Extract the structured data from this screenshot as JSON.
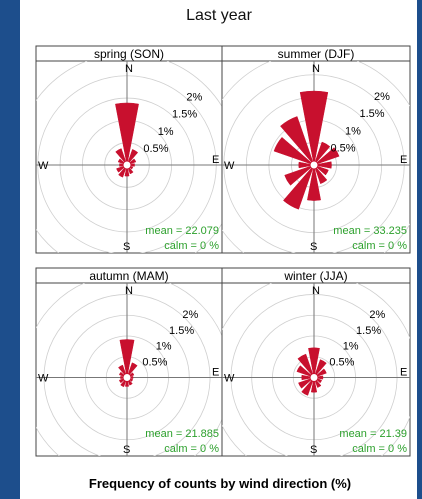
{
  "chart_data": {
    "type": "windrose",
    "title": "Last year",
    "xlabel": "Frequency of counts by wind direction (%)",
    "radial_ticks": [
      "0.5%",
      "1%",
      "1.5%",
      "2%"
    ],
    "radial_max": 2.5,
    "colors": {
      "petal": "#c8102e",
      "mean_text": "#2ca02c",
      "grid": "#cfcfcf",
      "axis": "#000000"
    },
    "directions": [
      0,
      30,
      60,
      90,
      120,
      150,
      180,
      210,
      240,
      270,
      300,
      330
    ],
    "compass": {
      "n": "N",
      "e": "E",
      "s": "S",
      "w": "W"
    },
    "panels": [
      {
        "name": "spring (SON)",
        "mean": "mean = 22.079",
        "calm": "calm = 0 %",
        "values": [
          1.3,
          0.28,
          0.12,
          0.08,
          0.05,
          0.12,
          0.16,
          0.2,
          0.16,
          0.08,
          0.12,
          0.3
        ]
      },
      {
        "name": "summer (DJF)",
        "mean": "mean = 33.235",
        "calm": "calm = 0 %",
        "values": [
          1.55,
          0.45,
          0.5,
          0.3,
          0.25,
          0.35,
          0.7,
          0.95,
          0.6,
          0.25,
          0.85,
          1.05
        ]
      },
      {
        "name": "autumn (MAM)",
        "mean": "mean = 21.885",
        "calm": "calm = 0 %",
        "values": [
          0.82,
          0.28,
          0.08,
          0.05,
          0.05,
          0.1,
          0.12,
          0.14,
          0.1,
          0.06,
          0.1,
          0.22
        ]
      },
      {
        "name": "winter (JJA)",
        "mean": "mean = 21.39",
        "calm": "calm = 0 %",
        "values": [
          0.62,
          0.36,
          0.22,
          0.12,
          0.1,
          0.16,
          0.26,
          0.36,
          0.3,
          0.2,
          0.34,
          0.5
        ]
      }
    ]
  }
}
